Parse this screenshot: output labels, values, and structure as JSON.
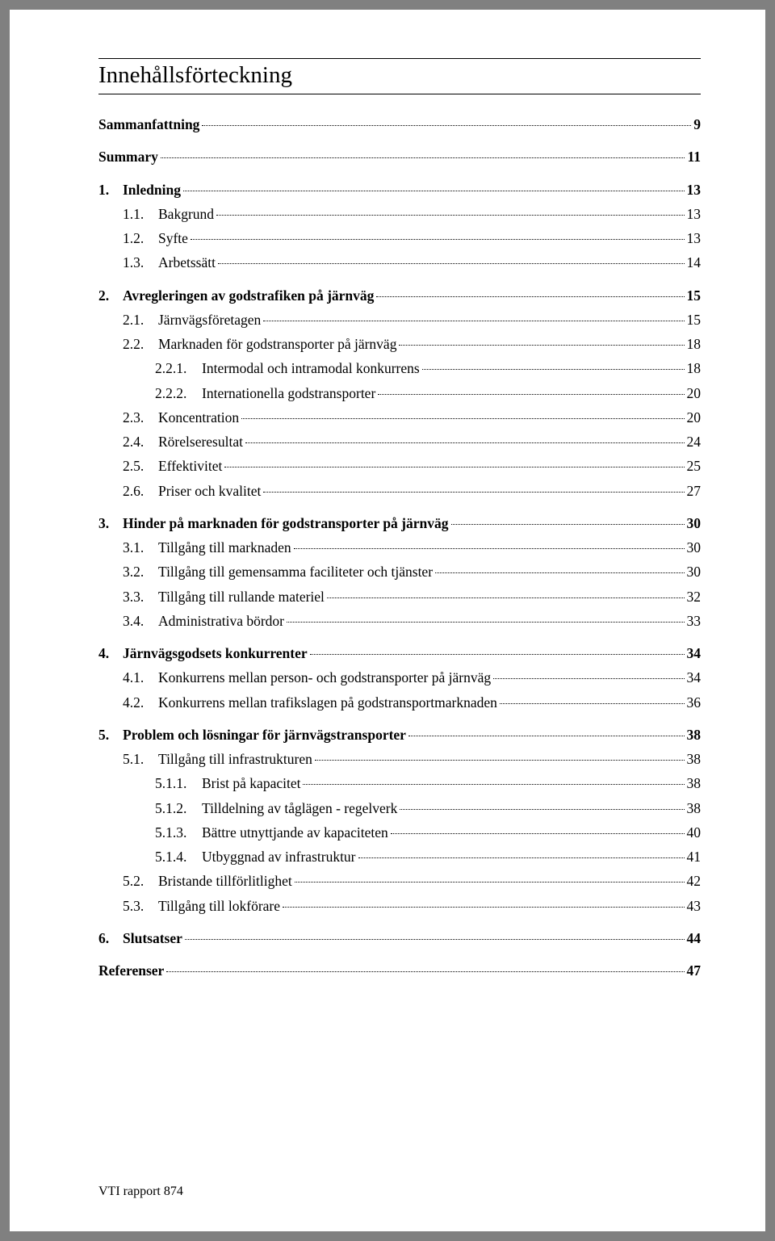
{
  "title": "Innehållsförteckning",
  "footer": "VTI rapport 874",
  "colors": {
    "page_bg": "#ffffff",
    "body_bg": "#808080",
    "text": "#000000",
    "rule": "#000000"
  },
  "typography": {
    "family": "Times New Roman",
    "title_size_pt": 22,
    "body_size_pt": 13,
    "footer_size_pt": 12
  },
  "toc": [
    {
      "level": 0,
      "num": "",
      "label": "Sammanfattning",
      "page": "9",
      "bold": true,
      "space": false
    },
    {
      "level": 0,
      "num": "",
      "label": "Summary",
      "page": "11",
      "bold": true,
      "space": true
    },
    {
      "level": 0,
      "num": "1.",
      "label": "Inledning",
      "page": "13",
      "bold": true,
      "space": true
    },
    {
      "level": 1,
      "num": "1.1.",
      "label": "Bakgrund",
      "page": "13",
      "bold": false,
      "space": false
    },
    {
      "level": 1,
      "num": "1.2.",
      "label": "Syfte",
      "page": "13",
      "bold": false,
      "space": false
    },
    {
      "level": 1,
      "num": "1.3.",
      "label": "Arbetssätt",
      "page": "14",
      "bold": false,
      "space": false
    },
    {
      "level": 0,
      "num": "2.",
      "label": "Avregleringen av godstrafiken på järnväg",
      "page": "15",
      "bold": true,
      "space": true
    },
    {
      "level": 1,
      "num": "2.1.",
      "label": "Järnvägsföretagen",
      "page": "15",
      "bold": false,
      "space": false
    },
    {
      "level": 1,
      "num": "2.2.",
      "label": "Marknaden för godstransporter på järnväg",
      "page": "18",
      "bold": false,
      "space": false
    },
    {
      "level": 2,
      "num": "2.2.1.",
      "label": "Intermodal och intramodal konkurrens",
      "page": "18",
      "bold": false,
      "space": false
    },
    {
      "level": 2,
      "num": "2.2.2.",
      "label": "Internationella godstransporter",
      "page": "20",
      "bold": false,
      "space": false
    },
    {
      "level": 1,
      "num": "2.3.",
      "label": "Koncentration",
      "page": "20",
      "bold": false,
      "space": false
    },
    {
      "level": 1,
      "num": "2.4.",
      "label": "Rörelseresultat",
      "page": "24",
      "bold": false,
      "space": false
    },
    {
      "level": 1,
      "num": "2.5.",
      "label": "Effektivitet",
      "page": "25",
      "bold": false,
      "space": false
    },
    {
      "level": 1,
      "num": "2.6.",
      "label": "Priser och kvalitet",
      "page": "27",
      "bold": false,
      "space": false
    },
    {
      "level": 0,
      "num": "3.",
      "label": "Hinder på marknaden för godstransporter på järnväg",
      "page": "30",
      "bold": true,
      "space": true
    },
    {
      "level": 1,
      "num": "3.1.",
      "label": "Tillgång till marknaden",
      "page": "30",
      "bold": false,
      "space": false
    },
    {
      "level": 1,
      "num": "3.2.",
      "label": "Tillgång till gemensamma faciliteter och tjänster",
      "page": "30",
      "bold": false,
      "space": false
    },
    {
      "level": 1,
      "num": "3.3.",
      "label": "Tillgång till rullande materiel",
      "page": "32",
      "bold": false,
      "space": false
    },
    {
      "level": 1,
      "num": "3.4.",
      "label": "Administrativa bördor",
      "page": "33",
      "bold": false,
      "space": false
    },
    {
      "level": 0,
      "num": "4.",
      "label": "Järnvägsgodsets konkurrenter",
      "page": "34",
      "bold": true,
      "space": true
    },
    {
      "level": 1,
      "num": "4.1.",
      "label": "Konkurrens mellan person- och godstransporter på järnväg",
      "page": "34",
      "bold": false,
      "space": false
    },
    {
      "level": 1,
      "num": "4.2.",
      "label": "Konkurrens mellan trafikslagen på godstransportmarknaden",
      "page": "36",
      "bold": false,
      "space": false
    },
    {
      "level": 0,
      "num": "5.",
      "label": "Problem och lösningar för järnvägstransporter",
      "page": "38",
      "bold": true,
      "space": true
    },
    {
      "level": 1,
      "num": "5.1.",
      "label": "Tillgång till infrastrukturen",
      "page": "38",
      "bold": false,
      "space": false
    },
    {
      "level": 2,
      "num": "5.1.1.",
      "label": "Brist på kapacitet",
      "page": "38",
      "bold": false,
      "space": false
    },
    {
      "level": 2,
      "num": "5.1.2.",
      "label": "Tilldelning av tåglägen - regelverk",
      "page": "38",
      "bold": false,
      "space": false
    },
    {
      "level": 2,
      "num": "5.1.3.",
      "label": "Bättre utnyttjande av kapaciteten",
      "page": "40",
      "bold": false,
      "space": false
    },
    {
      "level": 2,
      "num": "5.1.4.",
      "label": "Utbyggnad av infrastruktur",
      "page": "41",
      "bold": false,
      "space": false
    },
    {
      "level": 1,
      "num": "5.2.",
      "label": "Bristande tillförlitlighet",
      "page": "42",
      "bold": false,
      "space": false
    },
    {
      "level": 1,
      "num": "5.3.",
      "label": "Tillgång till lokförare",
      "page": "43",
      "bold": false,
      "space": false
    },
    {
      "level": 0,
      "num": "6.",
      "label": "Slutsatser",
      "page": "44",
      "bold": true,
      "space": true
    },
    {
      "level": 0,
      "num": "",
      "label": "Referenser",
      "page": "47",
      "bold": true,
      "space": true
    }
  ]
}
